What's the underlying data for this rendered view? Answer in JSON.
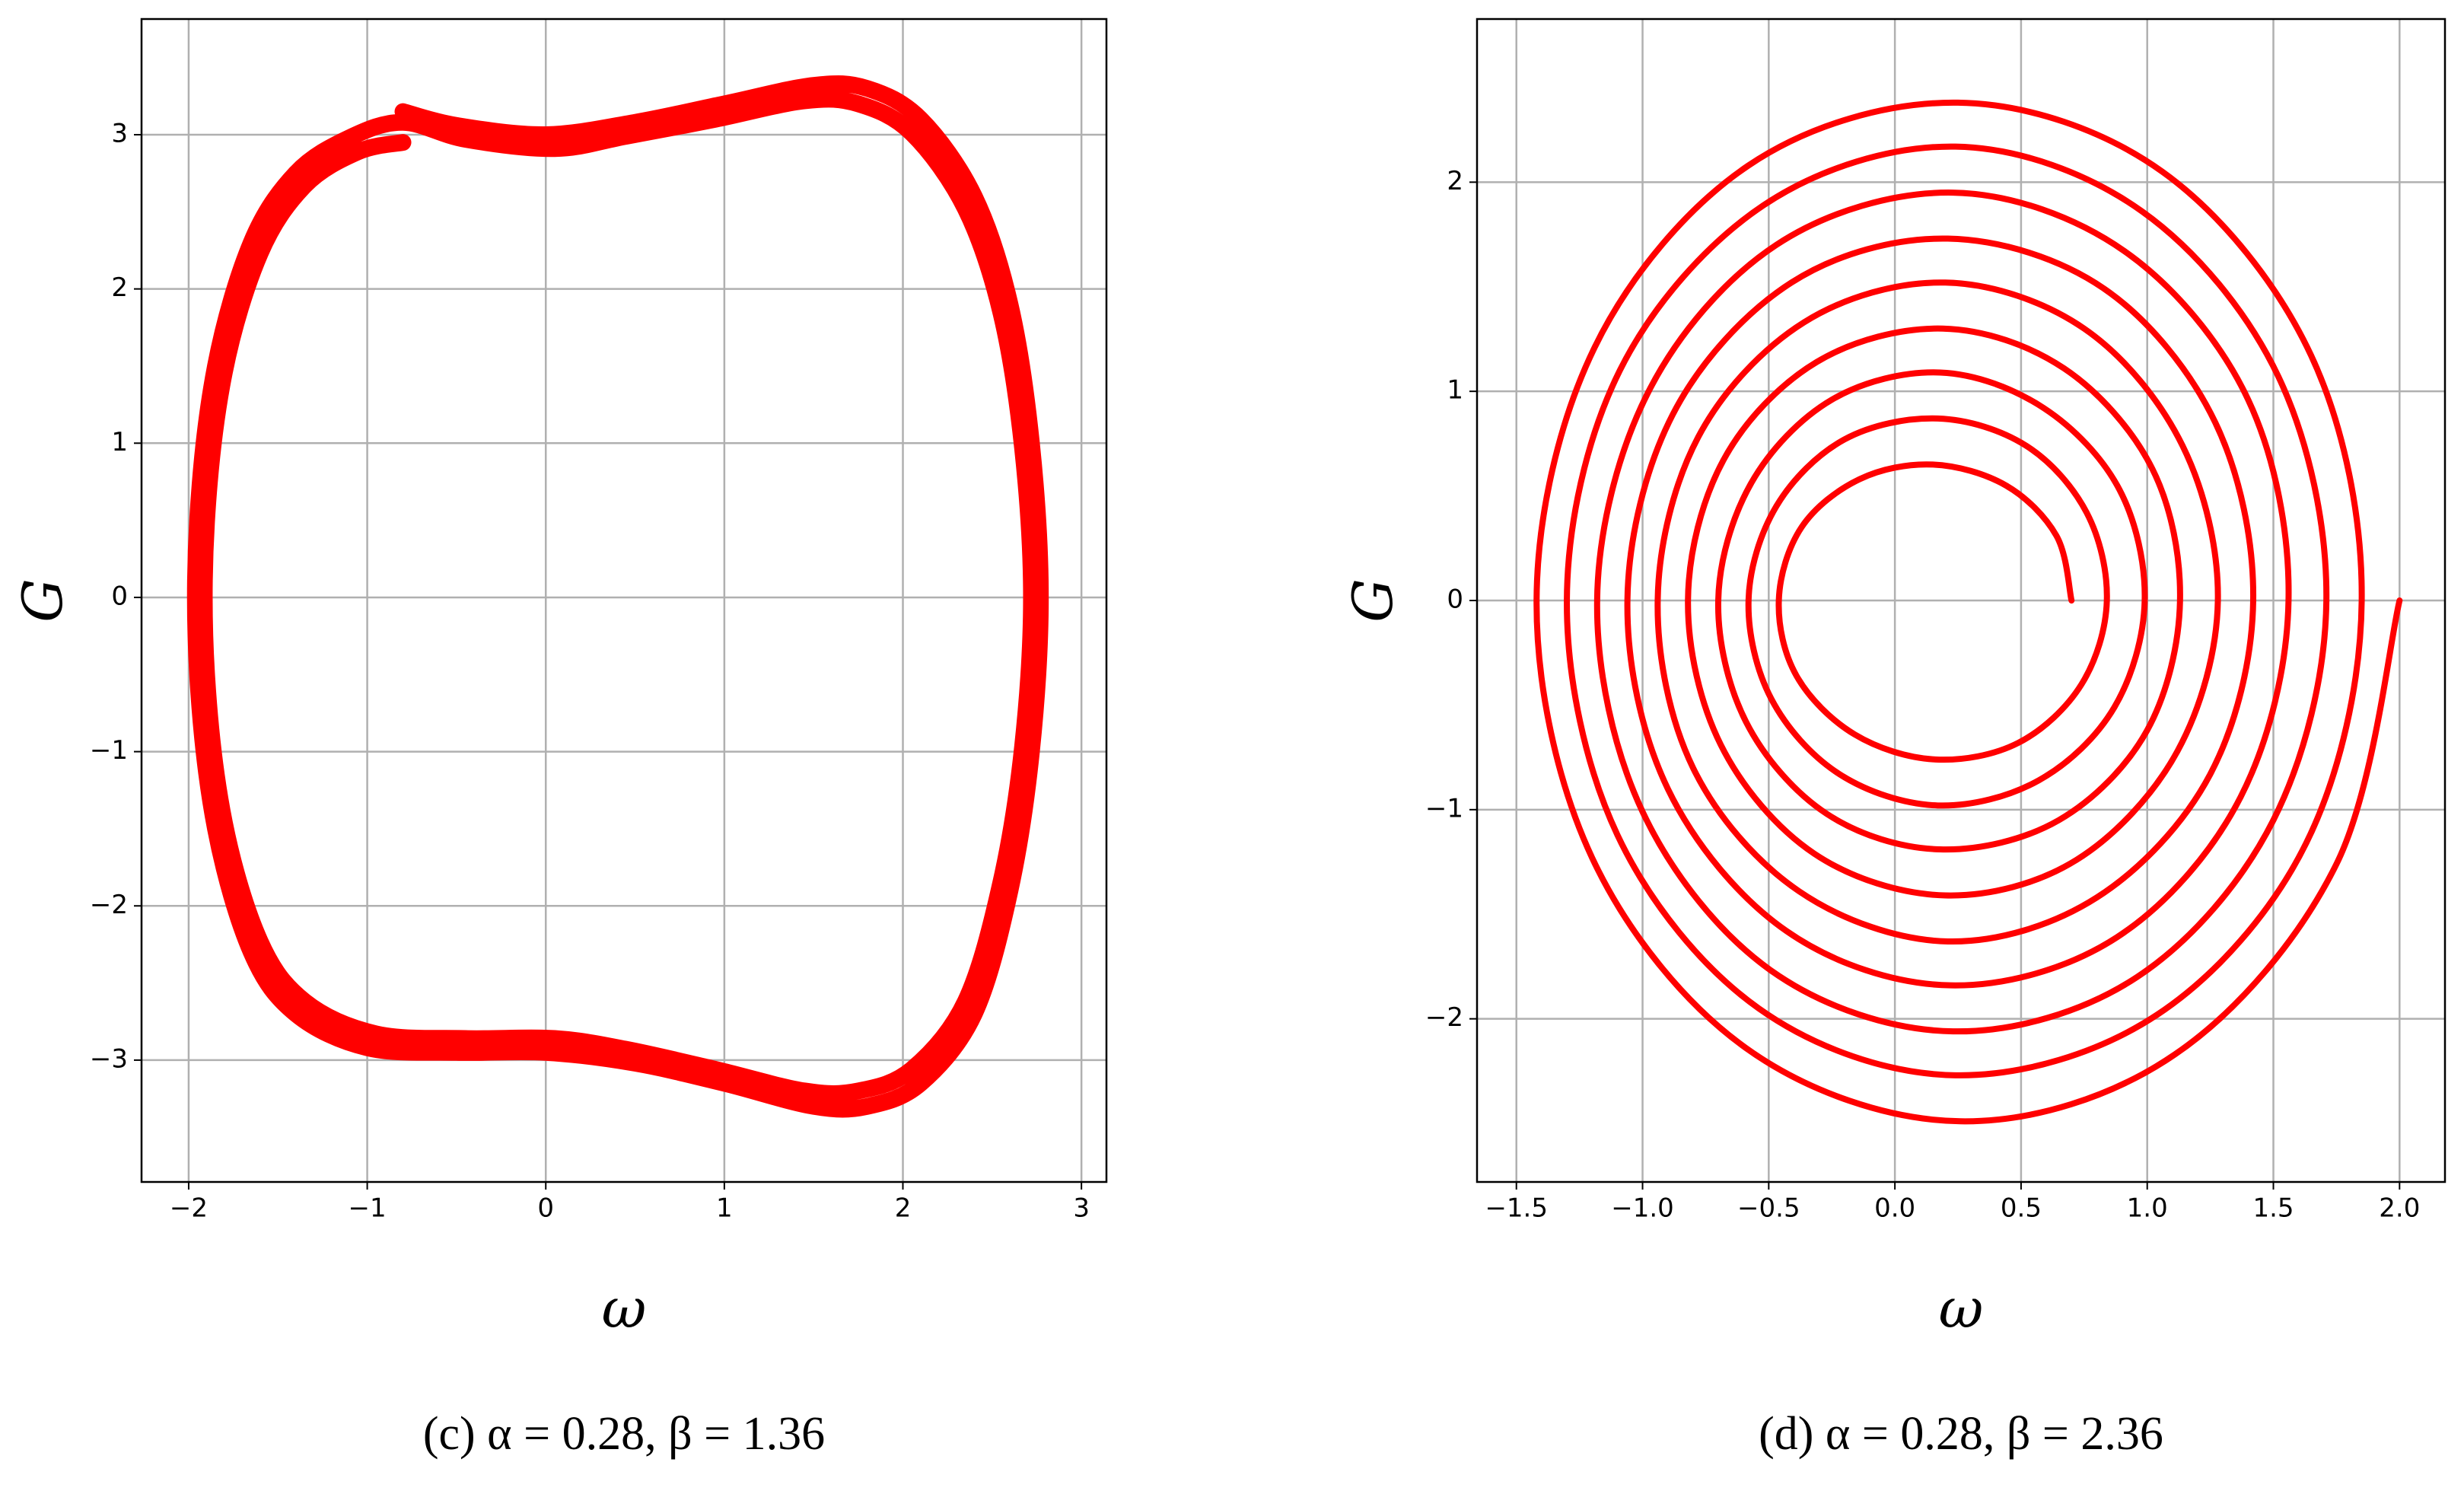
{
  "chart_data": [
    {
      "type": "line",
      "xlabel": "ω",
      "ylabel": "G",
      "caption": "(c) α = 0.28,  β = 1.36",
      "color": "#ff0000",
      "grid": true,
      "xlim": [
        -2.264,
        3.14
      ],
      "ylim": [
        -3.79,
        3.75
      ],
      "xticks": [
        {
          "value": -2,
          "label": "−2"
        },
        {
          "value": -1,
          "label": "−1"
        },
        0,
        1,
        2,
        3
      ],
      "yticks": [
        {
          "value": -3,
          "label": "−3"
        },
        {
          "value": -2,
          "label": "−2"
        },
        {
          "value": -1,
          "label": "−1"
        },
        0,
        1,
        2,
        3
      ],
      "x": [
        -0.8,
        -0.5,
        0,
        0.5,
        1,
        1.5,
        1.8,
        2.1,
        2.4,
        2.6,
        2.72,
        2.77,
        2.72,
        2.6,
        2.4,
        2.1,
        1.8,
        1.5,
        1,
        0.5,
        0,
        -0.5,
        -1,
        -1.4,
        -1.65,
        -1.85,
        -1.95,
        -1.95,
        -1.85,
        -1.65,
        -1.4,
        -1.1,
        -0.8,
        -0.45,
        0.05,
        0.45,
        0.95,
        1.45,
        1.75,
        2.05,
        2.35,
        2.55,
        2.67,
        2.72,
        2.67,
        2.55,
        2.35,
        2.05,
        1.75,
        1.45,
        0.95,
        0.45,
        0.05,
        -0.45,
        -0.95,
        -1.35,
        -1.6,
        -1.8,
        -1.9,
        -1.9,
        -1.8,
        -1.6,
        -1.35,
        -1.05,
        -0.8
      ],
      "values": [
        3.15,
        3.06,
        3.0,
        3.08,
        3.2,
        3.32,
        3.3,
        3.1,
        2.6,
        1.9,
        1.0,
        0,
        -1,
        -1.9,
        -2.7,
        -3.15,
        -3.3,
        -3.3,
        -3.15,
        -3.02,
        -2.95,
        -2.95,
        -2.92,
        -2.7,
        -2.3,
        -1.5,
        -0.5,
        0.5,
        1.5,
        2.3,
        2.75,
        2.98,
        3.08,
        2.97,
        2.91,
        2.99,
        3.1,
        3.22,
        3.2,
        3.01,
        2.52,
        1.84,
        0.97,
        0,
        -0.97,
        -1.84,
        -2.62,
        -3.06,
        -3.2,
        -3.2,
        -3.06,
        -2.93,
        -2.86,
        -2.86,
        -2.83,
        -2.62,
        -2.23,
        -1.46,
        -0.49,
        0.49,
        1.46,
        2.23,
        2.67,
        2.89,
        2.95
      ]
    },
    {
      "type": "line",
      "xlabel": "ω",
      "ylabel": "G",
      "caption": "(d) α = 0.28,  β = 2.36",
      "color": "#ff0000",
      "grid": true,
      "xlim": [
        -1.656,
        2.18
      ],
      "ylim": [
        -2.78,
        2.78
      ],
      "xticks": [
        {
          "value": -1.5,
          "label": "−1.5"
        },
        {
          "value": -1,
          "label": "−1.0"
        },
        {
          "value": -0.5,
          "label": "−0.5"
        },
        {
          "value": 0,
          "label": "0.0"
        },
        0.5,
        {
          "value": 1,
          "label": "1.0"
        },
        1.5,
        {
          "value": 2,
          "label": "2.0"
        }
      ],
      "yticks": [
        {
          "value": -2,
          "label": "−2"
        },
        {
          "value": -1,
          "label": "−1"
        },
        0,
        1,
        2
      ],
      "x": [
        0.7,
        0.64,
        0.44,
        0.15,
        -0.14,
        -0.37,
        -0.46,
        -0.39,
        -0.16,
        0.16,
        0.49,
        0.74,
        0.84,
        0.76,
        0.52,
        0.17,
        -0.2,
        -0.47,
        -0.58,
        -0.49,
        -0.22,
        0.17,
        0.57,
        0.87,
        0.99,
        0.89,
        0.59,
        0.18,
        -0.25,
        -0.57,
        -0.7,
        -0.59,
        -0.27,
        0.18,
        0.65,
        1.0,
        1.13,
        1.02,
        0.67,
        0.19,
        -0.31,
        -0.68,
        -0.82,
        -0.69,
        -0.32,
        0.2,
        0.72,
        1.12,
        1.28,
        1.14,
        0.75,
        0.2,
        -0.36,
        -0.78,
        -0.94,
        -0.8,
        -0.38,
        0.21,
        0.8,
        1.25,
        1.42,
        1.27,
        0.83,
        0.21,
        -0.41,
        -0.88,
        -1.06,
        -0.9,
        -0.43,
        0.22,
        0.88,
        1.37,
        1.56,
        1.4,
        0.91,
        0.23,
        -0.47,
        -0.98,
        -1.18,
        -1.0,
        -0.49,
        0.23,
        0.96,
        1.5,
        1.71,
        1.52,
        0.98,
        0.24,
        -0.52,
        -1.09,
        -1.3,
        -1.1,
        -0.54,
        0.24,
        1.04,
        1.63,
        1.85,
        1.65,
        1.06,
        0.25,
        -0.58,
        -1.19,
        -1.42,
        -1.2,
        -0.59,
        0.26,
        1.11,
        1.75,
        2.0
      ],
      "values": [
        0,
        0.31,
        0.55,
        0.65,
        0.58,
        0.35,
        0,
        -0.36,
        -0.64,
        -0.76,
        -0.68,
        -0.4,
        0,
        0.42,
        0.74,
        0.87,
        0.77,
        0.45,
        0,
        -0.47,
        -0.83,
        -0.98,
        -0.86,
        -0.51,
        0,
        0.53,
        0.92,
        1.09,
        0.96,
        0.56,
        0,
        -0.58,
        -1.02,
        -1.19,
        -1.05,
        -0.62,
        0,
        0.63,
        1.11,
        1.3,
        1.14,
        0.67,
        0,
        -0.69,
        -1.21,
        -1.41,
        -1.24,
        -0.72,
        0,
        0.74,
        1.3,
        1.52,
        1.33,
        0.78,
        0,
        -0.8,
        -1.39,
        -1.63,
        -1.42,
        -0.83,
        0,
        0.85,
        1.49,
        1.73,
        1.52,
        0.89,
        0,
        -0.9,
        -1.58,
        -1.84,
        -1.61,
        -0.94,
        0,
        0.96,
        1.67,
        1.95,
        1.7,
        0.99,
        0,
        -1.01,
        -1.77,
        -2.06,
        -1.8,
        -1.05,
        0,
        1.07,
        1.86,
        2.17,
        1.89,
        1.1,
        0,
        -1.12,
        -1.95,
        -2.27,
        -1.98,
        -1.16,
        0,
        1.17,
        2.05,
        2.38,
        2.08,
        1.21,
        0,
        -1.23,
        -2.14,
        -2.49,
        -2.17,
        -1.26,
        0
      ]
    }
  ]
}
